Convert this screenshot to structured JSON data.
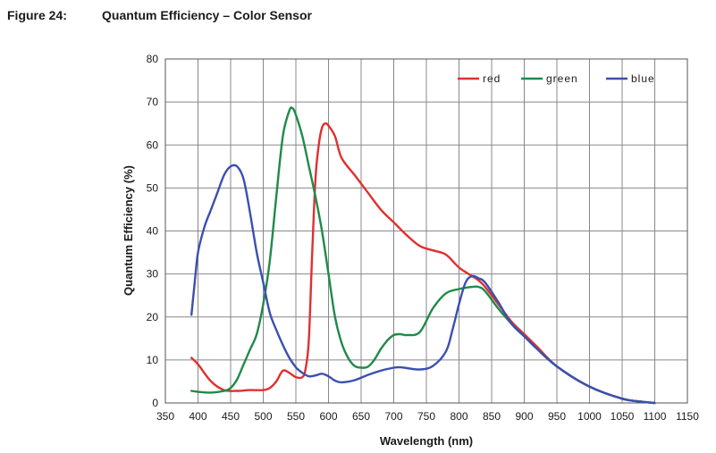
{
  "figure": {
    "label": "Figure 24:",
    "title": "Quantum Efficiency – Color Sensor"
  },
  "chart_data": {
    "type": "line",
    "title": "Quantum Efficiency – Color Sensor",
    "xlabel": "Wavelength (nm)",
    "ylabel": "Quantum Efficiency (%)",
    "xlim": [
      350,
      1150
    ],
    "ylim": [
      0,
      80
    ],
    "xticks": [
      350,
      400,
      450,
      500,
      550,
      600,
      650,
      700,
      750,
      800,
      850,
      900,
      950,
      1000,
      1050,
      1100,
      1150
    ],
    "yticks": [
      0,
      10,
      20,
      30,
      40,
      50,
      60,
      70,
      80
    ],
    "grid": true,
    "legend_position": "top-right",
    "series": [
      {
        "name": "red",
        "color": "#e03030",
        "x": [
          390,
          400,
          420,
          440,
          460,
          480,
          500,
          510,
          520,
          530,
          540,
          550,
          560,
          565,
          570,
          575,
          580,
          585,
          590,
          595,
          600,
          610,
          620,
          640,
          660,
          680,
          700,
          720,
          740,
          760,
          780,
          800,
          820,
          830,
          840,
          860,
          880,
          900,
          920,
          950,
          1000,
          1050,
          1080,
          1100
        ],
        "y": [
          10.5,
          9,
          5,
          3,
          2.8,
          3,
          3,
          3.5,
          5,
          7.5,
          7,
          6,
          6,
          8,
          15,
          35,
          52,
          60,
          64,
          65,
          64.5,
          62,
          57,
          53,
          49,
          45,
          42,
          39,
          36.5,
          35.5,
          34.5,
          31.5,
          29.5,
          28.5,
          27,
          23,
          19,
          16,
          13,
          8.5,
          3.8,
          1,
          0.3,
          0
        ]
      },
      {
        "name": "green",
        "color": "#1f8a4a",
        "x": [
          390,
          400,
          420,
          440,
          450,
          460,
          470,
          480,
          490,
          500,
          510,
          520,
          530,
          540,
          545,
          550,
          560,
          570,
          580,
          590,
          600,
          610,
          620,
          630,
          640,
          650,
          660,
          670,
          680,
          690,
          700,
          710,
          720,
          740,
          760,
          780,
          800,
          820,
          830,
          840,
          860,
          880,
          900,
          920,
          950,
          1000,
          1050,
          1080,
          1100
        ],
        "y": [
          2.8,
          2.6,
          2.4,
          2.8,
          3.5,
          5.5,
          9,
          12.5,
          16,
          23,
          33,
          48,
          62,
          68,
          68.5,
          67,
          62,
          55,
          48,
          40,
          30,
          20,
          14,
          10.5,
          8.6,
          8.2,
          8.4,
          10,
          12.5,
          14.5,
          15.8,
          16,
          15.8,
          16.5,
          22,
          25.5,
          26.5,
          27,
          27,
          26,
          22,
          18.5,
          15.5,
          12.5,
          8.5,
          3.8,
          1,
          0.3,
          0
        ]
      },
      {
        "name": "blue",
        "color": "#3b4fb0",
        "x": [
          390,
          395,
          400,
          410,
          420,
          430,
          440,
          450,
          460,
          470,
          480,
          490,
          500,
          510,
          520,
          530,
          540,
          550,
          560,
          570,
          580,
          590,
          600,
          610,
          620,
          640,
          660,
          680,
          700,
          710,
          720,
          740,
          760,
          780,
          790,
          800,
          810,
          820,
          830,
          840,
          860,
          880,
          900,
          920,
          950,
          1000,
          1050,
          1080,
          1100
        ],
        "y": [
          20.5,
          28,
          35,
          41,
          45,
          49,
          53,
          55,
          55,
          52,
          44,
          35,
          28,
          21,
          17,
          13.5,
          10.5,
          8.3,
          7,
          6.2,
          6.4,
          6.8,
          6.2,
          5.2,
          4.8,
          5.3,
          6.5,
          7.5,
          8.2,
          8.3,
          8.1,
          7.8,
          8.6,
          12,
          17,
          23,
          28,
          29.5,
          29,
          28,
          23.5,
          18.5,
          15.5,
          12.5,
          8.5,
          3.8,
          1,
          0.3,
          0
        ]
      }
    ]
  }
}
